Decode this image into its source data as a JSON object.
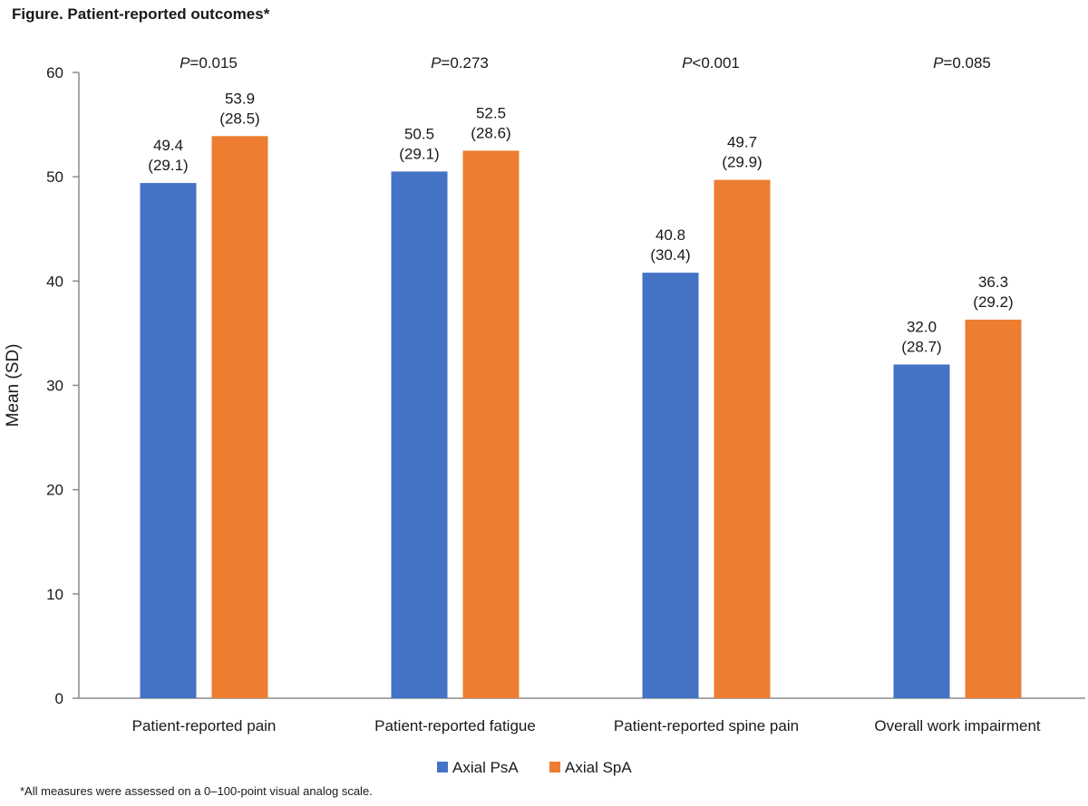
{
  "chart_data": {
    "type": "bar",
    "title": "Figure. Patient-reported outcomes*",
    "xlabel": "",
    "ylabel": "Mean (SD)",
    "ylim": [
      0,
      60
    ],
    "yticks": [
      0,
      10,
      20,
      30,
      40,
      50,
      60
    ],
    "grid": false,
    "legend_position": "bottom",
    "categories": [
      "Patient-reported pain",
      "Patient-reported fatigue",
      "Patient-reported spine pain",
      "Overall work impairment"
    ],
    "series": [
      {
        "name": "Axial PsA",
        "color": "#4472C4",
        "values": [
          49.4,
          50.5,
          40.8,
          32.0
        ],
        "value_labels": [
          "49.4",
          "50.5",
          "40.8",
          "32.0"
        ],
        "sd_labels": [
          "(29.1)",
          "(29.1)",
          "(30.4)",
          "(28.7)"
        ]
      },
      {
        "name": "Axial SpA",
        "color": "#ED7D31",
        "values": [
          53.9,
          52.5,
          49.7,
          36.3
        ],
        "value_labels": [
          "53.9",
          "52.5",
          "49.7",
          "36.3"
        ],
        "sd_labels": [
          "(28.5)",
          "(28.6)",
          "(29.9)",
          "(29.2)"
        ]
      }
    ],
    "p_values": [
      {
        "symbol": "P",
        "text": "=0.015"
      },
      {
        "symbol": "P",
        "text": "=0.273"
      },
      {
        "symbol": "P",
        "text": "<0.001"
      },
      {
        "symbol": "P",
        "text": "=0.085"
      }
    ],
    "footnote": "*All measures were assessed on a 0–100-point visual analog scale."
  }
}
